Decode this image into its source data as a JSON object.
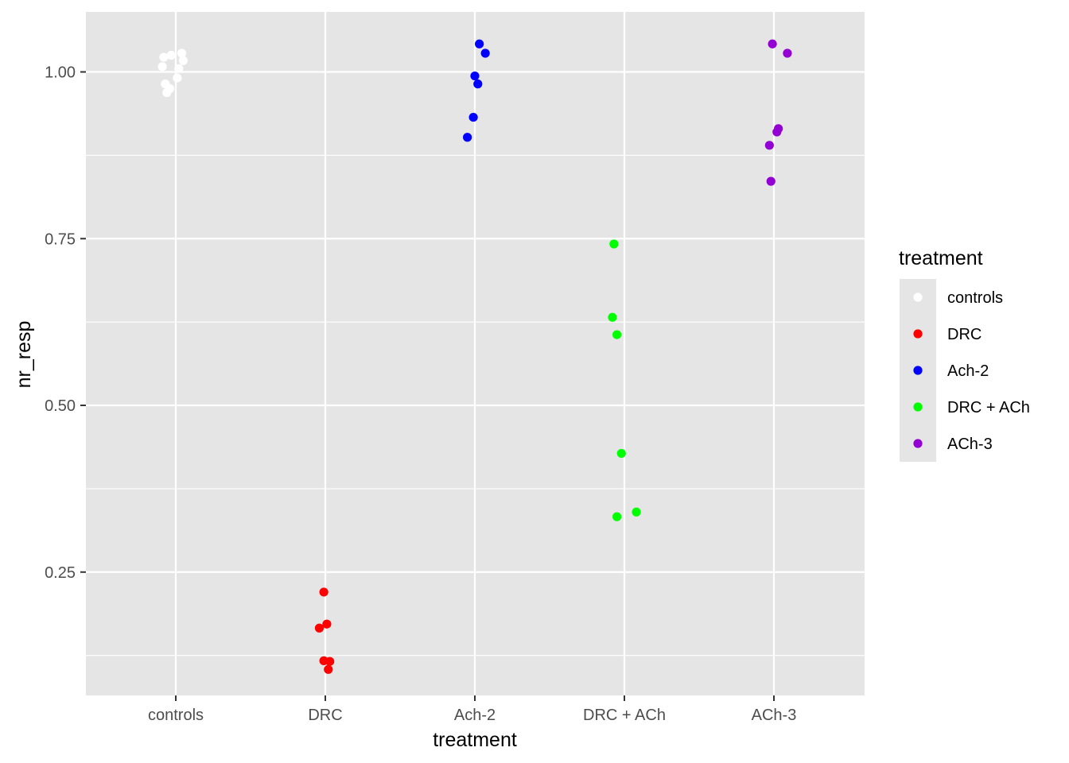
{
  "chart_data": {
    "type": "scatter",
    "title": "",
    "xlabel": "treatment",
    "ylabel": "nr_resp",
    "ylim": [
      0.065,
      1.09
    ],
    "y_ticks": [
      0.25,
      0.5,
      0.75,
      1.0
    ],
    "y_tick_labels": [
      "0.25",
      "0.50",
      "0.75",
      "1.00"
    ],
    "categories": [
      "controls",
      "DRC",
      "Ach-2",
      "DRC + ACh",
      "ACh-3"
    ],
    "grid": true,
    "panel_background": "#e5e5e5",
    "grid_color": "#ffffff",
    "legend": {
      "title": "treatment",
      "position": "right",
      "key_background": "#e5e5e5"
    },
    "series": [
      {
        "name": "controls",
        "color": "#ffffff",
        "points": [
          {
            "x": "controls",
            "jitter": -0.08,
            "y": 1.022
          },
          {
            "x": "controls",
            "jitter": -0.03,
            "y": 1.025
          },
          {
            "x": "controls",
            "jitter": 0.04,
            "y": 1.028
          },
          {
            "x": "controls",
            "jitter": 0.05,
            "y": 1.017
          },
          {
            "x": "controls",
            "jitter": -0.09,
            "y": 1.008
          },
          {
            "x": "controls",
            "jitter": 0.02,
            "y": 1.005
          },
          {
            "x": "controls",
            "jitter": 0.01,
            "y": 0.991
          },
          {
            "x": "controls",
            "jitter": -0.07,
            "y": 0.982
          },
          {
            "x": "controls",
            "jitter": -0.04,
            "y": 0.975
          },
          {
            "x": "controls",
            "jitter": -0.06,
            "y": 0.969
          }
        ]
      },
      {
        "name": "DRC",
        "color": "#ff0000",
        "points": [
          {
            "x": "DRC",
            "jitter": -0.01,
            "y": 0.22
          },
          {
            "x": "DRC",
            "jitter": 0.01,
            "y": 0.172
          },
          {
            "x": "DRC",
            "jitter": -0.04,
            "y": 0.166
          },
          {
            "x": "DRC",
            "jitter": -0.01,
            "y": 0.117
          },
          {
            "x": "DRC",
            "jitter": 0.03,
            "y": 0.116
          },
          {
            "x": "DRC",
            "jitter": 0.02,
            "y": 0.104
          }
        ]
      },
      {
        "name": "Ach-2",
        "color": "#0000ff",
        "points": [
          {
            "x": "Ach-2",
            "jitter": 0.03,
            "y": 1.042
          },
          {
            "x": "Ach-2",
            "jitter": 0.07,
            "y": 1.028
          },
          {
            "x": "Ach-2",
            "jitter": 0.0,
            "y": 0.994
          },
          {
            "x": "Ach-2",
            "jitter": 0.02,
            "y": 0.982
          },
          {
            "x": "Ach-2",
            "jitter": -0.01,
            "y": 0.932
          },
          {
            "x": "Ach-2",
            "jitter": -0.05,
            "y": 0.902
          }
        ]
      },
      {
        "name": "DRC + ACh",
        "color": "#00ff00",
        "points": [
          {
            "x": "DRC + ACh",
            "jitter": -0.07,
            "y": 0.742
          },
          {
            "x": "DRC + ACh",
            "jitter": -0.08,
            "y": 0.632
          },
          {
            "x": "DRC + ACh",
            "jitter": -0.05,
            "y": 0.606
          },
          {
            "x": "DRC + ACh",
            "jitter": -0.02,
            "y": 0.428
          },
          {
            "x": "DRC + ACh",
            "jitter": 0.08,
            "y": 0.34
          },
          {
            "x": "DRC + ACh",
            "jitter": -0.05,
            "y": 0.333
          }
        ]
      },
      {
        "name": "ACh-3",
        "color": "#9400d3",
        "points": [
          {
            "x": "ACh-3",
            "jitter": -0.01,
            "y": 1.042
          },
          {
            "x": "ACh-3",
            "jitter": 0.09,
            "y": 1.028
          },
          {
            "x": "ACh-3",
            "jitter": 0.03,
            "y": 0.915
          },
          {
            "x": "ACh-3",
            "jitter": 0.02,
            "y": 0.91
          },
          {
            "x": "ACh-3",
            "jitter": -0.03,
            "y": 0.89
          },
          {
            "x": "ACh-3",
            "jitter": -0.02,
            "y": 0.836
          }
        ]
      }
    ]
  }
}
